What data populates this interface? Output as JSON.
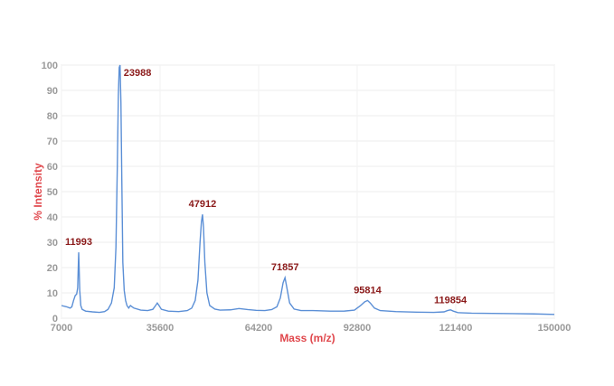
{
  "chart_data": {
    "type": "line",
    "title": "",
    "xlabel": "Mass (m/z)",
    "ylabel": "% Intensity",
    "xlim": [
      7000,
      150000
    ],
    "ylim": [
      0,
      100
    ],
    "x_ticks": [
      "7000",
      "35600",
      "64200",
      "92800",
      "121400",
      "150000"
    ],
    "y_ticks": [
      "0",
      "10",
      "20",
      "30",
      "40",
      "50",
      "60",
      "70",
      "80",
      "90",
      "100"
    ],
    "grid": true,
    "series_color": "#5b8fd6",
    "axis_title_color": "#e0474c",
    "peak_label_color": "#8b1a1a",
    "peaks": [
      {
        "label": "11993",
        "x": 11993,
        "y": 26
      },
      {
        "label": "23988",
        "x": 23988,
        "y": 100
      },
      {
        "label": "47912",
        "x": 47912,
        "y": 41
      },
      {
        "label": "71857",
        "x": 71857,
        "y": 16
      },
      {
        "label": "95814",
        "x": 95814,
        "y": 7
      },
      {
        "label": "119854",
        "x": 119854,
        "y": 3
      }
    ],
    "series": [
      {
        "x": [
          7000,
          8500,
          9500,
          10000,
          10500,
          11000,
          11400,
          11700,
          11993,
          12300,
          12600,
          13000,
          14000,
          16000,
          18000,
          19500,
          20500,
          21500,
          22300,
          22800,
          23200,
          23500,
          23750,
          23988,
          24250,
          24500,
          24800,
          25200,
          25600,
          26000,
          26500,
          27000,
          28000,
          30000,
          32000,
          33500,
          34300,
          34800,
          35300,
          36000,
          38000,
          41000,
          43500,
          44800,
          45800,
          46600,
          47200,
          47600,
          47912,
          48200,
          48600,
          49200,
          50000,
          51500,
          53000,
          56000,
          58500,
          61000,
          63500,
          66000,
          68000,
          69500,
          70500,
          71300,
          71857,
          72400,
          73200,
          74500,
          76500,
          80000,
          85000,
          89000,
          92000,
          93800,
          95000,
          95814,
          96600,
          97800,
          99500,
          104000,
          110000,
          115000,
          118000,
          119000,
          119854,
          120700,
          122000,
          126000,
          132000,
          138000,
          144000,
          150000
        ],
        "y": [
          5,
          4.5,
          4,
          4.5,
          7,
          9,
          9.5,
          12,
          26,
          11,
          5,
          3.5,
          2.8,
          2.5,
          2.3,
          2.6,
          3.5,
          6,
          12,
          28,
          60,
          88,
          99,
          100,
          85,
          55,
          22,
          11,
          7,
          5,
          4,
          5,
          4,
          3.2,
          3,
          3.5,
          5,
          6,
          5,
          3.5,
          2.8,
          2.6,
          3,
          4,
          7,
          15,
          30,
          38,
          41,
          36,
          22,
          10,
          5,
          3.6,
          3.2,
          3.3,
          3.8,
          3.4,
          3.1,
          3,
          3.4,
          4.5,
          8,
          14,
          16,
          12,
          6,
          3.6,
          3,
          3,
          2.8,
          2.8,
          3.2,
          5,
          6.5,
          7,
          6,
          4,
          3,
          2.6,
          2.4,
          2.3,
          2.5,
          3,
          3.3,
          2.8,
          2.2,
          2,
          1.9,
          1.8,
          1.7,
          1.5
        ]
      }
    ]
  }
}
